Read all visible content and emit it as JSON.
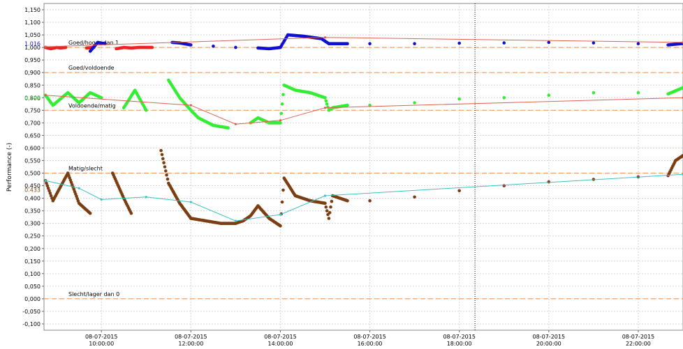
{
  "chart_data": {
    "type": "scatter",
    "ylabel": "Performance (-)",
    "ylim": [
      -0.125,
      1.175
    ],
    "xlim": [
      "2015-07-08 08:43",
      "2015-07-08 23:00"
    ],
    "grid": true,
    "y_ticks": [
      "1,150",
      "1,100",
      "1,050",
      "1,000",
      "0,950",
      "0,900",
      "0,850",
      "0,800",
      "0,750",
      "0,700",
      "0,650",
      "0,600",
      "0,550",
      "0,500",
      "0,450",
      "0,400",
      "0,350",
      "0,300",
      "0,250",
      "0,200",
      "0,150",
      "0,100",
      "0,050",
      "0,000",
      "-0,050",
      "-0,100"
    ],
    "x_ticks": [
      {
        "date": "08-07-2015",
        "time": "10:00:00",
        "t": "10:00"
      },
      {
        "date": "08-07-2015",
        "time": "12:00:00",
        "t": "12:00"
      },
      {
        "date": "08-07-2015",
        "time": "14:00:00",
        "t": "14:00"
      },
      {
        "date": "08-07-2015",
        "time": "16:00:00",
        "t": "16:00"
      },
      {
        "date": "08-07-2015",
        "time": "18:00:00",
        "t": "18:00"
      },
      {
        "date": "08-07-2015",
        "time": "20:00:00",
        "t": "20:00"
      },
      {
        "date": "08-07-2015",
        "time": "22:00:00",
        "t": "22:00"
      }
    ],
    "cursor_time": "18:21",
    "thresholds": [
      {
        "label": "Goed/hoger dan 1",
        "y": 1.0,
        "color": "#f0a060"
      },
      {
        "label": "Goed/voldoende",
        "y": 0.9,
        "color": "#f0a060"
      },
      {
        "label": "Voldoende/matig",
        "y": 0.75,
        "color": "#f0a060"
      },
      {
        "label": "Matig/slecht",
        "y": 0.5,
        "color": "#f0a060"
      },
      {
        "label": "Slecht/lager dan 0",
        "y": 0.0,
        "color": "#f0a060"
      }
    ],
    "current_values": [
      {
        "label": "1.016",
        "y": 1.016,
        "color": "#1010c0"
      },
      {
        "label": "0.798",
        "y": 0.798,
        "color": "#30d030"
      },
      {
        "label": "0.433",
        "y": 0.433,
        "color": "#7a4a1a"
      }
    ],
    "series": [
      {
        "color": "#ee2222",
        "style": "points",
        "points": [
          [
            "08:45",
            1.0
          ],
          [
            "08:52",
            0.995
          ],
          [
            "09:00",
            1.0
          ],
          [
            "09:05",
            0.998
          ],
          [
            "09:12",
            1.0
          ],
          [
            "09:40",
            0.998
          ],
          [
            "09:50",
            1.0
          ],
          [
            "10:20",
            0.995
          ],
          [
            "10:30",
            1.0
          ],
          [
            "10:40",
            0.998
          ],
          [
            "10:50",
            1.0
          ],
          [
            "11:08",
            1.0
          ]
        ]
      },
      {
        "color": "#1010d0",
        "style": "points",
        "points": [
          [
            "09:45",
            0.985
          ],
          [
            "09:55",
            1.02
          ],
          [
            "10:05",
            1.015
          ],
          [
            "11:35",
            1.02
          ],
          [
            "11:45",
            1.018
          ],
          [
            "12:00",
            1.01
          ],
          [
            "12:30",
            1.005
          ],
          [
            "13:00",
            1.0
          ],
          [
            "13:30",
            0.998
          ],
          [
            "13:45",
            0.995
          ],
          [
            "14:00",
            1.0
          ],
          [
            "14:10",
            1.05
          ],
          [
            "14:30",
            1.045
          ],
          [
            "14:55",
            1.035
          ],
          [
            "15:05",
            1.015
          ],
          [
            "15:30",
            1.015
          ],
          [
            "16:00",
            1.015
          ],
          [
            "17:00",
            1.015
          ],
          [
            "18:00",
            1.017
          ],
          [
            "19:00",
            1.018
          ],
          [
            "20:00",
            1.02
          ],
          [
            "21:00",
            1.018
          ],
          [
            "22:00",
            1.015
          ],
          [
            "22:40",
            1.01
          ],
          [
            "23:00",
            1.016
          ]
        ]
      },
      {
        "color": "#e06050",
        "style": "line",
        "points": [
          [
            "08:45",
            1.003
          ],
          [
            "15:00",
            1.04
          ],
          [
            "23:00",
            1.02
          ]
        ]
      },
      {
        "color": "#33ee33",
        "style": "points",
        "points": [
          [
            "08:45",
            0.81
          ],
          [
            "08:55",
            0.77
          ],
          [
            "09:15",
            0.82
          ],
          [
            "09:30",
            0.78
          ],
          [
            "09:45",
            0.82
          ],
          [
            "10:00",
            0.8
          ],
          [
            "10:30",
            0.76
          ],
          [
            "10:45",
            0.83
          ],
          [
            "11:00",
            0.75
          ],
          [
            "11:30",
            0.87
          ],
          [
            "11:45",
            0.8
          ],
          [
            "12:00",
            0.75
          ],
          [
            "12:10",
            0.72
          ],
          [
            "12:30",
            0.69
          ],
          [
            "12:50",
            0.68
          ],
          [
            "13:20",
            0.7
          ],
          [
            "13:30",
            0.72
          ],
          [
            "13:45",
            0.7
          ],
          [
            "14:00",
            0.7
          ],
          [
            "14:05",
            0.85
          ],
          [
            "14:20",
            0.83
          ],
          [
            "14:40",
            0.82
          ],
          [
            "15:00",
            0.8
          ],
          [
            "15:05",
            0.75
          ],
          [
            "15:10",
            0.76
          ],
          [
            "15:30",
            0.77
          ],
          [
            "16:00",
            0.77
          ],
          [
            "17:00",
            0.78
          ],
          [
            "18:00",
            0.795
          ],
          [
            "19:00",
            0.8
          ],
          [
            "20:00",
            0.81
          ],
          [
            "21:00",
            0.82
          ],
          [
            "22:00",
            0.82
          ],
          [
            "22:40",
            0.815
          ],
          [
            "23:00",
            0.84
          ]
        ]
      },
      {
        "color": "#e06050",
        "style": "line",
        "points": [
          [
            "08:45",
            0.81
          ],
          [
            "12:00",
            0.77
          ],
          [
            "13:00",
            0.695
          ],
          [
            "14:00",
            0.71
          ],
          [
            "15:00",
            0.76
          ],
          [
            "23:00",
            0.8
          ]
        ]
      },
      {
        "color": "#7a3e12",
        "style": "points",
        "points": [
          [
            "08:45",
            0.47
          ],
          [
            "08:55",
            0.39
          ],
          [
            "09:15",
            0.5
          ],
          [
            "09:30",
            0.38
          ],
          [
            "09:45",
            0.34
          ],
          [
            "10:15",
            0.5
          ],
          [
            "10:30",
            0.4
          ],
          [
            "10:40",
            0.34
          ],
          [
            "11:20",
            0.59
          ],
          [
            "11:30",
            0.46
          ],
          [
            "11:45",
            0.38
          ],
          [
            "12:00",
            0.32
          ],
          [
            "12:20",
            0.31
          ],
          [
            "12:40",
            0.3
          ],
          [
            "13:00",
            0.3
          ],
          [
            "13:10",
            0.31
          ],
          [
            "13:20",
            0.33
          ],
          [
            "13:30",
            0.37
          ],
          [
            "13:45",
            0.32
          ],
          [
            "14:00",
            0.29
          ],
          [
            "14:05",
            0.48
          ],
          [
            "14:20",
            0.41
          ],
          [
            "14:40",
            0.39
          ],
          [
            "15:00",
            0.38
          ],
          [
            "15:05",
            0.32
          ],
          [
            "15:10",
            0.41
          ],
          [
            "15:30",
            0.39
          ],
          [
            "16:00",
            0.39
          ],
          [
            "17:00",
            0.405
          ],
          [
            "18:00",
            0.43
          ],
          [
            "19:00",
            0.45
          ],
          [
            "20:00",
            0.465
          ],
          [
            "21:00",
            0.475
          ],
          [
            "22:00",
            0.485
          ],
          [
            "22:40",
            0.49
          ],
          [
            "22:50",
            0.55
          ],
          [
            "23:00",
            0.57
          ]
        ]
      },
      {
        "color": "#40c0c0",
        "style": "line",
        "points": [
          [
            "08:45",
            0.47
          ],
          [
            "09:30",
            0.44
          ],
          [
            "10:00",
            0.395
          ],
          [
            "11:00",
            0.405
          ],
          [
            "12:00",
            0.385
          ],
          [
            "13:00",
            0.31
          ],
          [
            "14:00",
            0.335
          ],
          [
            "15:00",
            0.41
          ],
          [
            "23:00",
            0.495
          ]
        ]
      }
    ]
  }
}
